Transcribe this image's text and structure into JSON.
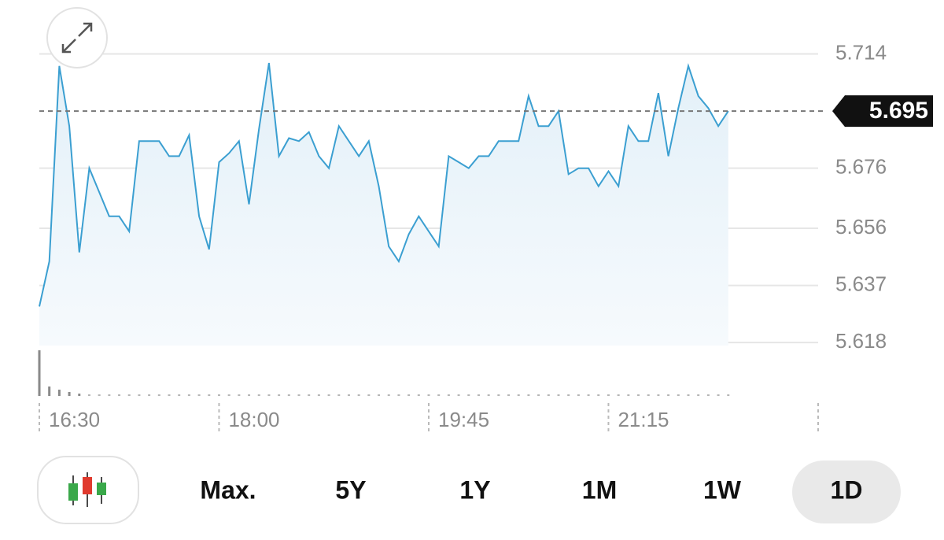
{
  "chart_data": {
    "type": "line",
    "color": "#3b9fd1",
    "x": [
      "16:30",
      "16:35",
      "16:40",
      "16:45",
      "16:50",
      "16:55",
      "17:00",
      "17:05",
      "17:10",
      "17:15",
      "17:20",
      "17:25",
      "17:30",
      "17:35",
      "17:40",
      "17:45",
      "17:50",
      "17:55",
      "18:00",
      "18:05",
      "18:10",
      "18:15",
      "18:20",
      "18:25",
      "18:30",
      "18:35",
      "18:40",
      "18:45",
      "18:50",
      "18:55",
      "19:00",
      "19:05",
      "19:10",
      "19:15",
      "19:20",
      "19:25",
      "19:30",
      "19:35",
      "19:40",
      "19:45",
      "19:50",
      "19:55",
      "20:00",
      "20:05",
      "20:10",
      "20:15",
      "20:20",
      "20:25",
      "20:30",
      "20:35",
      "20:40",
      "20:45",
      "20:50",
      "20:55",
      "21:00",
      "21:05",
      "21:10",
      "21:15",
      "21:20",
      "21:25",
      "21:30",
      "21:35",
      "21:40",
      "21:45",
      "21:50",
      "21:55",
      "22:00",
      "22:05",
      "22:10",
      "22:15"
    ],
    "values": [
      5.63,
      5.645,
      5.71,
      5.69,
      5.648,
      5.676,
      5.668,
      5.66,
      5.66,
      5.655,
      5.685,
      5.685,
      5.685,
      5.68,
      5.68,
      5.687,
      5.66,
      5.649,
      5.678,
      5.681,
      5.685,
      5.664,
      5.689,
      5.711,
      5.68,
      5.686,
      5.685,
      5.688,
      5.68,
      5.676,
      5.69,
      5.685,
      5.68,
      5.685,
      5.67,
      5.65,
      5.645,
      5.654,
      5.66,
      5.655,
      5.65,
      5.68,
      5.678,
      5.676,
      5.68,
      5.68,
      5.685,
      5.685,
      5.685,
      5.7,
      5.69,
      5.69,
      5.695,
      5.674,
      5.676,
      5.676,
      5.67,
      5.675,
      5.67,
      5.69,
      5.685,
      5.685,
      5.701,
      5.68,
      5.696,
      5.71,
      5.7,
      5.696,
      5.69,
      5.695
    ],
    "volume": [
      58,
      12,
      8,
      5,
      3,
      2,
      2,
      2,
      2,
      2,
      2,
      2,
      2,
      2,
      2,
      2,
      2,
      2,
      2,
      2,
      2,
      2,
      2,
      2,
      2,
      2,
      2,
      2,
      2,
      2,
      2,
      2,
      2,
      2,
      2,
      2,
      2,
      2,
      2,
      2,
      2,
      2,
      2,
      2,
      2,
      2,
      2,
      2,
      2,
      2,
      2,
      2,
      2,
      2,
      2,
      2,
      2,
      2,
      2,
      2,
      2,
      2,
      2,
      2,
      2,
      2,
      2,
      2,
      2,
      2
    ],
    "current_value": 5.695,
    "xlim": [
      "16:30",
      "23:00"
    ],
    "xticks": [
      "16:30",
      "18:00",
      "19:45",
      "21:15"
    ],
    "ylim": [
      5.617,
      5.722
    ],
    "yticks": [
      5.714,
      5.676,
      5.656,
      5.637,
      5.618
    ],
    "grid": true
  },
  "controls": {
    "range_buttons": [
      "Max.",
      "5Y",
      "1Y",
      "1M",
      "1W",
      "1D"
    ],
    "selected": "1D"
  }
}
